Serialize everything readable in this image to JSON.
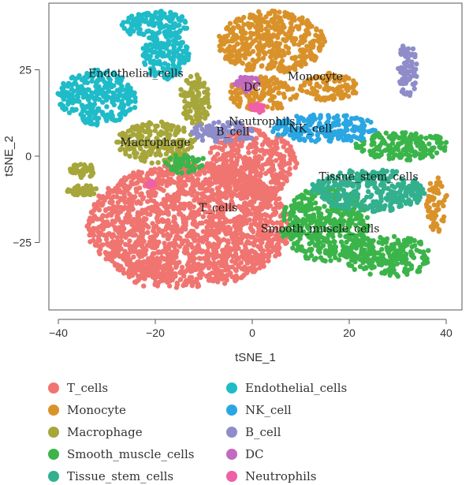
{
  "chart_data": {
    "type": "scatter",
    "xlabel": "tSNE_1",
    "ylabel": "tSNE_2",
    "xlim": [
      -44,
      44
    ],
    "ylim": [
      -44,
      44
    ],
    "x_ticks": [
      -40,
      -20,
      0,
      20,
      40
    ],
    "y_ticks": [
      -25,
      0,
      25
    ],
    "x_tick_labels": [
      "−40",
      "−20",
      "0",
      "20",
      "40"
    ],
    "y_tick_labels": [
      "−25",
      "0",
      "25"
    ],
    "grid": false,
    "legend_position": "bottom",
    "series": [
      {
        "name": "T_cells",
        "color": "#F07470",
        "label_at": [
          -7,
          -16
        ],
        "clusters": [
          {
            "cx": -13,
            "cy": -20,
            "rx": 21,
            "ry": 18
          },
          {
            "cx": 0,
            "cy": -2,
            "rx": 9,
            "ry": 10
          },
          {
            "cx": -21,
            "cy": -34,
            "rx": 5,
            "ry": 4
          }
        ]
      },
      {
        "name": "Monocyte",
        "color": "#D9922A",
        "label_at": [
          13,
          22
        ],
        "clusters": [
          {
            "cx": 4,
            "cy": 33,
            "rx": 11,
            "ry": 9
          },
          {
            "cx": 2,
            "cy": 18,
            "rx": 7,
            "ry": 5
          },
          {
            "cx": 16,
            "cy": 20,
            "rx": 6,
            "ry": 4
          },
          {
            "cx": 38,
            "cy": -14,
            "rx": 2,
            "ry": 8
          }
        ]
      },
      {
        "name": "Macrophage",
        "color": "#A6A63A",
        "label_at": [
          -20,
          3
        ],
        "clusters": [
          {
            "cx": -20,
            "cy": 4,
            "rx": 8,
            "ry": 6
          },
          {
            "cx": -12,
            "cy": 16,
            "rx": 3,
            "ry": 8
          },
          {
            "cx": -35,
            "cy": -4,
            "rx": 3,
            "ry": 2
          },
          {
            "cx": -35,
            "cy": -10,
            "rx": 3,
            "ry": 1.5
          }
        ]
      },
      {
        "name": "Smooth_muscle_cells",
        "color": "#3BB44A",
        "label_at": [
          14,
          -22
        ],
        "clusters": [
          {
            "cx": 15,
            "cy": -20,
            "rx": 9,
            "ry": 11
          },
          {
            "cx": 28,
            "cy": -29,
            "rx": 9,
            "ry": 6
          },
          {
            "cx": 31,
            "cy": 3,
            "rx": 10,
            "ry": 4
          },
          {
            "cx": -14,
            "cy": -2,
            "rx": 4,
            "ry": 3
          }
        ]
      },
      {
        "name": "Tissue_stem_cells",
        "color": "#33B08E",
        "label_at": [
          24,
          -7
        ],
        "clusters": [
          {
            "cx": 24,
            "cy": -10,
            "rx": 12,
            "ry": 6
          }
        ]
      },
      {
        "name": "Endothelial_cells",
        "color": "#1FBBC8",
        "label_at": [
          -24,
          23
        ],
        "clusters": [
          {
            "cx": -32,
            "cy": 17,
            "rx": 8,
            "ry": 8
          },
          {
            "cx": -18,
            "cy": 29,
            "rx": 5,
            "ry": 7
          },
          {
            "cx": -20,
            "cy": 38,
            "rx": 7,
            "ry": 4
          }
        ]
      },
      {
        "name": "NK_cell",
        "color": "#2AA6E2",
        "label_at": [
          12,
          7
        ],
        "clusters": [
          {
            "cx": 15,
            "cy": 8,
            "rx": 11,
            "ry": 4
          }
        ]
      },
      {
        "name": "B_cell",
        "color": "#8E8DCA",
        "label_at": [
          -4,
          6
        ],
        "clusters": [
          {
            "cx": -6,
            "cy": 7,
            "rx": 7,
            "ry": 3
          },
          {
            "cx": 32,
            "cy": 25,
            "rx": 2,
            "ry": 8
          }
        ]
      },
      {
        "name": "DC",
        "color": "#C26ABF",
        "label_at": [
          0,
          19
        ],
        "clusters": [
          {
            "cx": -1,
            "cy": 21,
            "rx": 2.5,
            "ry": 2.5
          }
        ]
      },
      {
        "name": "Neutrophils",
        "color": "#F060A6",
        "label_at": [
          2,
          9
        ],
        "clusters": [
          {
            "cx": 1,
            "cy": 14,
            "rx": 1.5,
            "ry": 1.2
          },
          {
            "cx": -21,
            "cy": -8,
            "rx": 0.6,
            "ry": 0.6
          }
        ]
      }
    ]
  }
}
